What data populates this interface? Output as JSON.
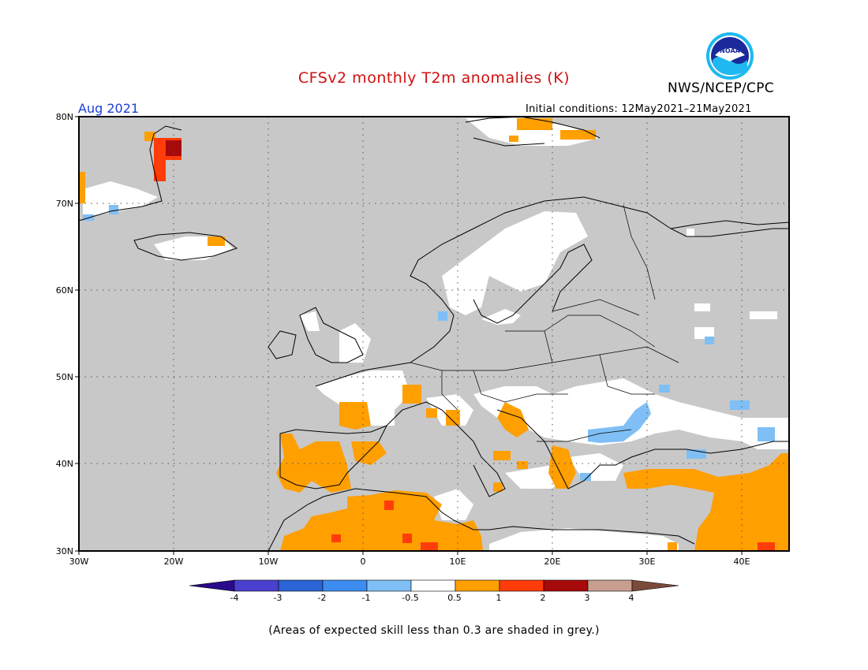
{
  "header": {
    "title": "CFSv2 monthly T2m anomalies (K)",
    "agency": "NWS/NCEP/CPC",
    "month": "Aug 2021",
    "initial_conditions": "Initial conditions: 12May2021–21May2021"
  },
  "logo": {
    "icon": "noaa-logo-icon",
    "text": "NOAA"
  },
  "map": {
    "lon_range": [
      -30,
      45
    ],
    "lat_range": [
      30,
      80
    ],
    "lat_ticks": [
      "80N",
      "70N",
      "60N",
      "50N",
      "40N",
      "30N"
    ],
    "lon_ticks": [
      "30W",
      "20W",
      "10W",
      "0",
      "10E",
      "20E",
      "30E",
      "40E"
    ],
    "background_note": "grey = skill < 0.3"
  },
  "colorbar": {
    "labels": [
      "-4",
      "-3",
      "-2",
      "-1",
      "-0.5",
      "0.5",
      "1",
      "2",
      "3",
      "4"
    ],
    "colors": [
      "#2a0a8a",
      "#4b3fcf",
      "#2a64d6",
      "#3d8df0",
      "#7fbff5",
      "#ffffff",
      "#ff9f00",
      "#ff3c0a",
      "#a60a0a",
      "#c79e90",
      "#7a4a3a"
    ]
  },
  "footnote": "(Areas of expected skill less than 0.3 are shaded in grey.)"
}
